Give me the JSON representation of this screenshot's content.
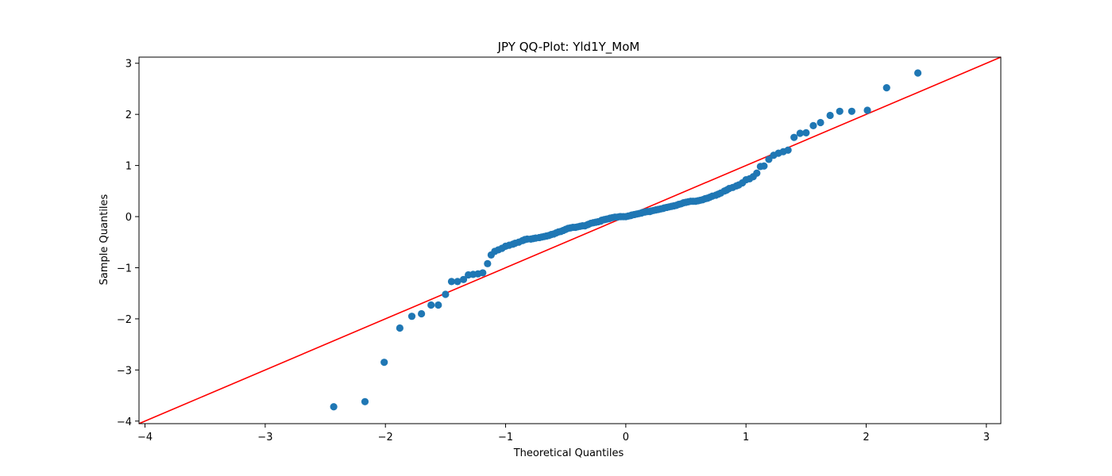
{
  "chart_data": {
    "type": "scatter",
    "title": "JPY QQ-Plot: Yld1Y_MoM",
    "xlabel": "Theoretical Quantiles",
    "ylabel": "Sample Quantiles",
    "xlim": [
      -4.05,
      3.12
    ],
    "ylim": [
      -4.05,
      3.12
    ],
    "xticks": [
      -4,
      -3,
      -2,
      -1,
      0,
      1,
      2,
      3
    ],
    "yticks": [
      -4,
      -3,
      -2,
      -1,
      0,
      1,
      2,
      3
    ],
    "xtick_labels": [
      "−4",
      "−3",
      "−2",
      "−1",
      "0",
      "1",
      "2",
      "3"
    ],
    "ytick_labels": [
      "−4",
      "−3",
      "−2",
      "−1",
      "0",
      "1",
      "2",
      "3"
    ],
    "grid": false,
    "reference_line": {
      "slope": 1,
      "intercept": 0,
      "color": "#ff0000"
    },
    "marker_color": "#1f77b4",
    "series": [
      {
        "x": [
          -2.43,
          -2.17,
          -2.01,
          -1.88,
          -1.78,
          -1.7,
          -1.62,
          -1.56,
          -1.5,
          -1.45,
          -1.4,
          -1.35,
          -1.31,
          -1.27,
          -1.23,
          -1.19,
          -1.15,
          -1.12,
          -1.09,
          -1.06,
          -1.03,
          -1.0,
          -0.97,
          -0.94,
          -0.92,
          -0.89,
          -0.86,
          -0.84,
          -0.82,
          -0.79,
          -0.77,
          -0.75,
          -0.72,
          -0.7,
          -0.68,
          -0.66,
          -0.64,
          -0.62,
          -0.6,
          -0.58,
          -0.56,
          -0.54,
          -0.52,
          -0.5,
          -0.48,
          -0.46,
          -0.44,
          -0.42,
          -0.4,
          -0.38,
          -0.36,
          -0.34,
          -0.32,
          -0.31,
          -0.29,
          -0.27,
          -0.25,
          -0.23,
          -0.21,
          -0.2,
          -0.18,
          -0.16,
          -0.14,
          -0.13,
          -0.11,
          -0.09,
          -0.07,
          -0.05,
          -0.04,
          -0.02,
          0.0,
          0.02,
          0.04,
          0.05,
          0.07,
          0.09,
          0.11,
          0.13,
          0.14,
          0.16,
          0.18,
          0.2,
          0.21,
          0.23,
          0.25,
          0.27,
          0.29,
          0.31,
          0.32,
          0.34,
          0.36,
          0.38,
          0.4,
          0.42,
          0.44,
          0.46,
          0.48,
          0.5,
          0.52,
          0.54,
          0.56,
          0.58,
          0.6,
          0.62,
          0.64,
          0.66,
          0.68,
          0.7,
          0.72,
          0.75,
          0.77,
          0.79,
          0.82,
          0.84,
          0.86,
          0.89,
          0.92,
          0.94,
          0.97,
          1.0,
          1.03,
          1.06,
          1.09,
          1.12,
          1.15,
          1.19,
          1.23,
          1.27,
          1.31,
          1.35,
          1.4,
          1.45,
          1.5,
          1.56,
          1.62,
          1.7,
          1.78,
          1.88,
          2.01,
          2.17,
          2.43
        ],
        "y": [
          -3.72,
          -3.62,
          -2.85,
          -2.18,
          -1.95,
          -1.9,
          -1.73,
          -1.73,
          -1.52,
          -1.27,
          -1.27,
          -1.23,
          -1.14,
          -1.13,
          -1.12,
          -1.1,
          -0.92,
          -0.75,
          -0.68,
          -0.65,
          -0.62,
          -0.58,
          -0.56,
          -0.54,
          -0.52,
          -0.5,
          -0.47,
          -0.45,
          -0.44,
          -0.44,
          -0.43,
          -0.42,
          -0.41,
          -0.4,
          -0.39,
          -0.38,
          -0.37,
          -0.35,
          -0.34,
          -0.32,
          -0.3,
          -0.29,
          -0.27,
          -0.25,
          -0.23,
          -0.22,
          -0.21,
          -0.21,
          -0.2,
          -0.19,
          -0.18,
          -0.18,
          -0.16,
          -0.15,
          -0.13,
          -0.12,
          -0.11,
          -0.1,
          -0.09,
          -0.07,
          -0.06,
          -0.05,
          -0.04,
          -0.03,
          -0.02,
          -0.01,
          -0.01,
          0.0,
          0.0,
          0.0,
          0.0,
          0.01,
          0.02,
          0.03,
          0.04,
          0.05,
          0.06,
          0.07,
          0.08,
          0.09,
          0.1,
          0.1,
          0.11,
          0.12,
          0.13,
          0.14,
          0.15,
          0.16,
          0.17,
          0.18,
          0.19,
          0.2,
          0.21,
          0.22,
          0.24,
          0.25,
          0.27,
          0.28,
          0.29,
          0.3,
          0.3,
          0.3,
          0.31,
          0.32,
          0.33,
          0.35,
          0.36,
          0.38,
          0.4,
          0.42,
          0.44,
          0.46,
          0.5,
          0.52,
          0.55,
          0.57,
          0.6,
          0.62,
          0.66,
          0.72,
          0.74,
          0.78,
          0.85,
          0.98,
          0.99,
          1.12,
          1.2,
          1.24,
          1.27,
          1.3,
          1.55,
          1.63,
          1.64,
          1.78,
          1.84,
          1.98,
          2.06,
          2.06,
          2.08,
          2.52,
          2.81
        ]
      }
    ]
  }
}
